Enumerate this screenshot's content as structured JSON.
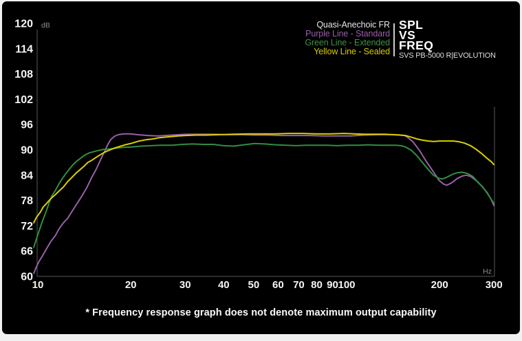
{
  "page": {
    "background": "#f2f1f2",
    "card_background": "#000000"
  },
  "header": {
    "legend": {
      "items": [
        {
          "label": "Quasi-Anechoic FR",
          "color": "#e8e8e8"
        },
        {
          "label": "Purple Line - Standard",
          "color": "#9a5faa"
        },
        {
          "label": "Green Line - Extended",
          "color": "#3f9148"
        },
        {
          "label": "Yellow Line - Sealed",
          "color": "#d8cb00"
        }
      ]
    },
    "title_lines": [
      "SPL",
      "VS",
      "FREQ"
    ],
    "subtitle": "SVS PB-5000 R|EVOLUTION"
  },
  "footer": {
    "note": "* Frequency response graph does not denote maximum output capability"
  },
  "chart_data": {
    "type": "line",
    "title": "SPL VS FREQ",
    "subtitle": "SVS PB-5000 R|EVOLUTION",
    "xlabel": "Hz",
    "ylabel": "dB",
    "x_scale": "log",
    "x_range": [
      10,
      300
    ],
    "y_range": [
      60,
      120
    ],
    "x_ticks": [
      10,
      20,
      30,
      40,
      50,
      60,
      70,
      80,
      90,
      100,
      200,
      300
    ],
    "y_ticks": [
      120,
      114,
      108,
      102,
      96,
      90,
      84,
      78,
      72,
      66,
      60
    ],
    "grid": false,
    "legend_position": "top-right",
    "axis_color": "#585858",
    "tick_label_color": "#f5f5f5",
    "unit_label_color": "#909090",
    "series": [
      {
        "name": "Purple Line - Standard",
        "color": "#9a5faa",
        "points": [
          [
            9.7,
            60.7
          ],
          [
            9.9,
            62.3
          ],
          [
            10.1,
            63.6
          ],
          [
            10.3,
            64.6
          ],
          [
            10.4,
            65.1
          ],
          [
            10.7,
            66.7
          ],
          [
            11.0,
            68.2
          ],
          [
            11.4,
            69.7
          ],
          [
            11.7,
            71.2
          ],
          [
            12.1,
            72.7
          ],
          [
            12.5,
            73.8
          ],
          [
            12.9,
            75.4
          ],
          [
            13.4,
            77.3
          ],
          [
            13.9,
            79.1
          ],
          [
            14.4,
            81.0
          ],
          [
            14.9,
            83.3
          ],
          [
            15.5,
            85.6
          ],
          [
            16.0,
            87.8
          ],
          [
            16.4,
            89.4
          ],
          [
            16.8,
            91.1
          ],
          [
            17.2,
            92.4
          ],
          [
            17.7,
            93.2
          ],
          [
            18.2,
            93.6
          ],
          [
            19.0,
            93.8
          ],
          [
            20.0,
            93.8
          ],
          [
            21.0,
            93.6
          ],
          [
            22.7,
            93.4
          ],
          [
            24.5,
            93.3
          ],
          [
            27.2,
            93.5
          ],
          [
            30.1,
            93.7
          ],
          [
            33.4,
            93.7
          ],
          [
            37.0,
            93.7
          ],
          [
            41.0,
            93.6
          ],
          [
            45.4,
            93.6
          ],
          [
            50.3,
            93.5
          ],
          [
            55.7,
            93.5
          ],
          [
            61.8,
            93.4
          ],
          [
            68.5,
            93.4
          ],
          [
            75.8,
            93.4
          ],
          [
            84.0,
            93.3
          ],
          [
            93.1,
            93.3
          ],
          [
            103,
            93.3
          ],
          [
            114,
            93.5
          ],
          [
            127,
            93.6
          ],
          [
            137,
            93.6
          ],
          [
            144,
            93.6
          ],
          [
            150,
            93.5
          ],
          [
            154,
            93.4
          ],
          [
            158,
            92.9
          ],
          [
            164,
            91.9
          ],
          [
            172,
            89.9
          ],
          [
            181,
            87.3
          ],
          [
            191,
            84.8
          ],
          [
            199,
            82.8
          ],
          [
            206,
            81.9
          ],
          [
            211,
            81.6
          ],
          [
            219,
            82.2
          ],
          [
            228,
            83.2
          ],
          [
            237,
            83.8
          ],
          [
            244,
            84.0
          ],
          [
            252,
            83.7
          ],
          [
            262,
            82.8
          ],
          [
            273,
            81.5
          ],
          [
            285,
            79.9
          ],
          [
            294,
            78.2
          ],
          [
            300,
            76.8
          ]
        ]
      },
      {
        "name": "Green Line - Extended",
        "color": "#2f9040",
        "points": [
          [
            9.7,
            66.9
          ],
          [
            9.9,
            68.9
          ],
          [
            10.1,
            70.8
          ],
          [
            10.3,
            72.7
          ],
          [
            10.5,
            74.3
          ],
          [
            10.7,
            75.9
          ],
          [
            10.9,
            77.6
          ],
          [
            11.1,
            79.1
          ],
          [
            11.4,
            80.4
          ],
          [
            11.7,
            81.9
          ],
          [
            12.0,
            83.2
          ],
          [
            12.3,
            84.3
          ],
          [
            12.6,
            85.3
          ],
          [
            13.0,
            86.5
          ],
          [
            13.4,
            87.4
          ],
          [
            13.8,
            88.1
          ],
          [
            14.2,
            88.8
          ],
          [
            14.7,
            89.3
          ],
          [
            15.2,
            89.6
          ],
          [
            15.6,
            89.8
          ],
          [
            16.3,
            90.1
          ],
          [
            17.0,
            90.2
          ],
          [
            17.9,
            90.4
          ],
          [
            19.0,
            90.6
          ],
          [
            20.2,
            90.7
          ],
          [
            21.6,
            90.9
          ],
          [
            23.3,
            91.0
          ],
          [
            25.1,
            91.1
          ],
          [
            27.2,
            91.1
          ],
          [
            29.4,
            91.3
          ],
          [
            31.7,
            91.4
          ],
          [
            34.2,
            91.3
          ],
          [
            37.0,
            91.3
          ],
          [
            39.9,
            91.0
          ],
          [
            43.1,
            90.9
          ],
          [
            46.5,
            91.2
          ],
          [
            50.3,
            91.5
          ],
          [
            54.4,
            91.4
          ],
          [
            58.7,
            91.2
          ],
          [
            63.5,
            91.1
          ],
          [
            68.5,
            91.0
          ],
          [
            73.9,
            91.1
          ],
          [
            79.9,
            91.1
          ],
          [
            86.2,
            91.1
          ],
          [
            93.1,
            91.0
          ],
          [
            101,
            91.1
          ],
          [
            109,
            91.1
          ],
          [
            117,
            91.2
          ],
          [
            127,
            91.1
          ],
          [
            137,
            91.1
          ],
          [
            144,
            91.1
          ],
          [
            150,
            91.0
          ],
          [
            155,
            90.7
          ],
          [
            162,
            89.9
          ],
          [
            169,
            88.6
          ],
          [
            176,
            87.0
          ],
          [
            184,
            85.3
          ],
          [
            191,
            84.0
          ],
          [
            198,
            83.3
          ],
          [
            204,
            83.1
          ],
          [
            211,
            83.5
          ],
          [
            220,
            84.2
          ],
          [
            229,
            84.6
          ],
          [
            237,
            84.7
          ],
          [
            246,
            84.4
          ],
          [
            256,
            83.7
          ],
          [
            265,
            82.5
          ],
          [
            276,
            81.2
          ],
          [
            286,
            79.6
          ],
          [
            300,
            77.3
          ]
        ]
      },
      {
        "name": "Yellow Line - Sealed",
        "color": "#ddd000",
        "points": [
          [
            9.7,
            72.7
          ],
          [
            9.9,
            74.0
          ],
          [
            10.2,
            75.3
          ],
          [
            10.4,
            76.4
          ],
          [
            10.7,
            77.4
          ],
          [
            11.0,
            78.4
          ],
          [
            11.4,
            79.4
          ],
          [
            11.7,
            80.2
          ],
          [
            12.1,
            81.2
          ],
          [
            12.5,
            82.5
          ],
          [
            12.9,
            83.5
          ],
          [
            13.3,
            84.5
          ],
          [
            13.7,
            85.3
          ],
          [
            14.1,
            86.1
          ],
          [
            14.5,
            87.0
          ],
          [
            15.0,
            87.6
          ],
          [
            15.5,
            88.3
          ],
          [
            16.0,
            88.9
          ],
          [
            16.4,
            89.4
          ],
          [
            17.0,
            89.9
          ],
          [
            17.7,
            90.4
          ],
          [
            18.4,
            90.8
          ],
          [
            19.2,
            91.2
          ],
          [
            20.2,
            91.6
          ],
          [
            21.3,
            92.1
          ],
          [
            22.4,
            92.4
          ],
          [
            23.6,
            92.6
          ],
          [
            24.8,
            92.9
          ],
          [
            26.5,
            93.1
          ],
          [
            28.4,
            93.3
          ],
          [
            30.1,
            93.4
          ],
          [
            32.5,
            93.5
          ],
          [
            35.1,
            93.5
          ],
          [
            38.9,
            93.6
          ],
          [
            43.1,
            93.7
          ],
          [
            47.8,
            93.8
          ],
          [
            52.9,
            93.8
          ],
          [
            58.7,
            93.8
          ],
          [
            65.1,
            93.9
          ],
          [
            72.1,
            93.9
          ],
          [
            79.9,
            93.8
          ],
          [
            88.5,
            93.8
          ],
          [
            98.1,
            93.9
          ],
          [
            106,
            93.8
          ],
          [
            114,
            93.7
          ],
          [
            123,
            93.7
          ],
          [
            133,
            93.7
          ],
          [
            141,
            93.6
          ],
          [
            149,
            93.5
          ],
          [
            155,
            93.4
          ],
          [
            162,
            93.0
          ],
          [
            169,
            92.6
          ],
          [
            176,
            92.3
          ],
          [
            184,
            92.1
          ],
          [
            191,
            92.0
          ],
          [
            201,
            92.1
          ],
          [
            212,
            92.1
          ],
          [
            222,
            92.1
          ],
          [
            232,
            91.9
          ],
          [
            241,
            91.6
          ],
          [
            252,
            91.0
          ],
          [
            262,
            90.2
          ],
          [
            273,
            89.2
          ],
          [
            285,
            88.0
          ],
          [
            294,
            87.2
          ],
          [
            300,
            86.5
          ]
        ]
      }
    ]
  }
}
